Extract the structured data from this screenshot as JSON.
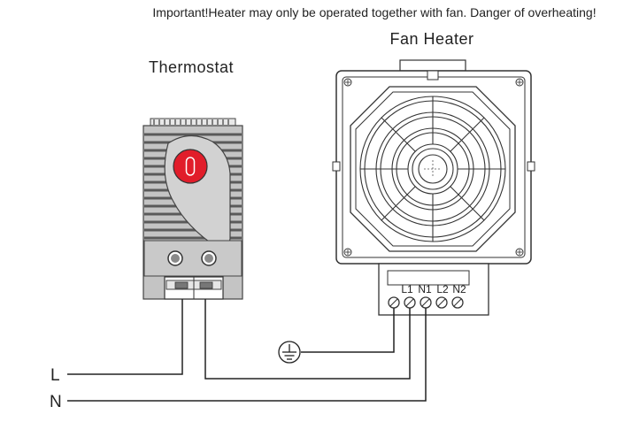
{
  "warning": "Important!Heater may only be operated together with fan. Danger of overheating!",
  "thermostat": {
    "title": "Thermostat"
  },
  "fan_heater": {
    "title": "Fan Heater",
    "terminals": [
      "L1",
      "N1",
      "L2",
      "N2"
    ]
  },
  "lines": {
    "L": "L",
    "N": "N"
  },
  "symbols": {
    "ground": "ground-symbol"
  },
  "colors": {
    "dial_red": "#e11d2a",
    "thermostat_gray": "#b9b9b9",
    "line": "#222222"
  }
}
